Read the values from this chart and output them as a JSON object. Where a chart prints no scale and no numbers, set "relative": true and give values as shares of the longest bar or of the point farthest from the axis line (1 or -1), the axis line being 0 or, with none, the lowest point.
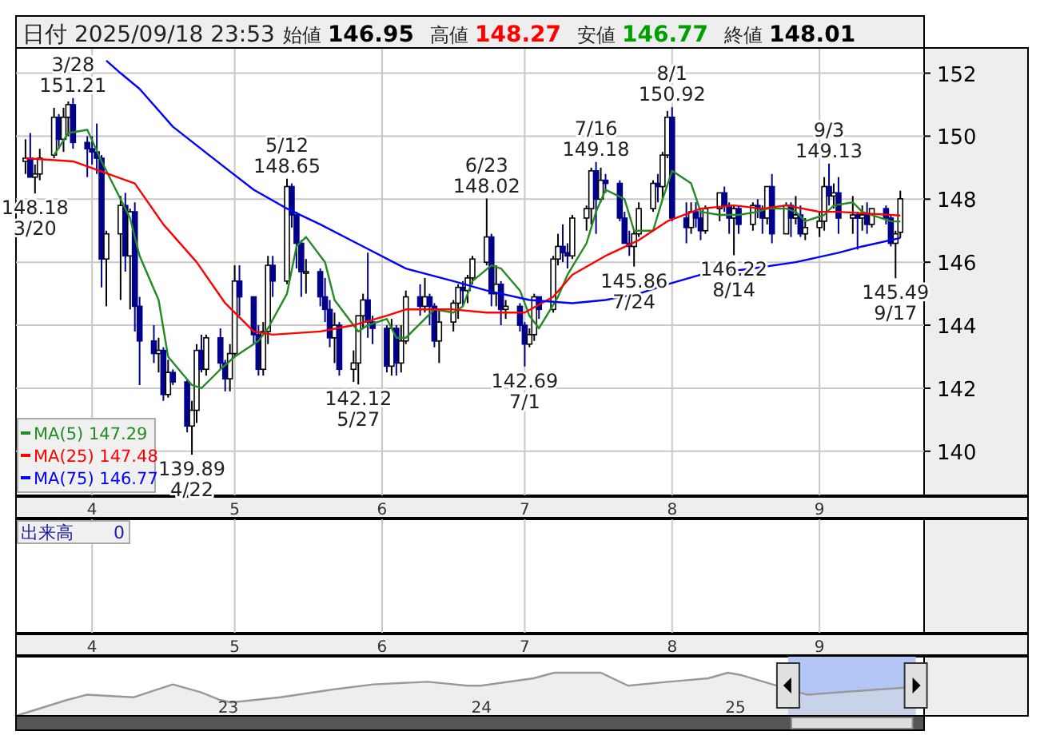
{
  "chart_data": [
    {
      "type": "candlestick",
      "title": "日付 2025/09/18 23:53",
      "annotations": [
        "始値",
        "146.95",
        "高値",
        "148.27",
        "安値",
        "146.77",
        "終値",
        "148.01",
        {
          "text": "3/28",
          "x": "2025-03-28",
          "y": 151.21
        },
        {
          "text": "151.21",
          "x": "2025-03-28",
          "y": 151.21
        },
        {
          "text": "148.18",
          "x": "2025-03-20",
          "y": 148.18
        },
        {
          "text": "3/20",
          "x": "2025-03-20",
          "y": 148.18
        },
        {
          "text": "139.89",
          "x": "2025-04-22",
          "y": 139.89
        },
        {
          "text": "4/22",
          "x": "2025-04-22",
          "y": 139.89
        },
        {
          "text": "5/12",
          "x": "2025-05-12",
          "y": 148.65
        },
        {
          "text": "148.65",
          "x": "2025-05-12",
          "y": 148.65
        },
        {
          "text": "142.12",
          "x": "2025-05-27",
          "y": 142.12
        },
        {
          "text": "5/27",
          "x": "2025-05-27",
          "y": 142.12
        },
        {
          "text": "6/23",
          "x": "2025-06-23",
          "y": 148.02
        },
        {
          "text": "148.02",
          "x": "2025-06-23",
          "y": 148.02
        },
        {
          "text": "142.69",
          "x": "2025-07-01",
          "y": 142.69
        },
        {
          "text": "7/1",
          "x": "2025-07-01",
          "y": 142.69
        },
        {
          "text": "7/16",
          "x": "2025-07-16",
          "y": 149.18
        },
        {
          "text": "149.18",
          "x": "2025-07-16",
          "y": 149.18
        },
        {
          "text": "145.86",
          "x": "2025-07-24",
          "y": 145.86
        },
        {
          "text": "7/24",
          "x": "2025-07-24",
          "y": 145.86
        },
        {
          "text": "8/1",
          "x": "2025-08-01",
          "y": 150.92
        },
        {
          "text": "150.92",
          "x": "2025-08-01",
          "y": 150.92
        },
        {
          "text": "146.22",
          "x": "2025-08-14",
          "y": 146.22
        },
        {
          "text": "8/14",
          "x": "2025-08-14",
          "y": 146.22
        },
        {
          "text": "9/3",
          "x": "2025-09-03",
          "y": 149.13
        },
        {
          "text": "149.13",
          "x": "2025-09-03",
          "y": 149.13
        },
        {
          "text": "145.49",
          "x": "2025-09-17",
          "y": 145.49
        },
        {
          "text": "9/17",
          "x": "2025-09-17",
          "y": 145.49
        }
      ],
      "x": [
        "2025-03-18",
        "2025-03-19",
        "2025-03-20",
        "2025-03-21",
        "2025-03-24",
        "2025-03-25",
        "2025-03-26",
        "2025-03-27",
        "2025-03-28",
        "2025-03-31",
        "2025-04-01",
        "2025-04-02",
        "2025-04-03",
        "2025-04-04",
        "2025-04-07",
        "2025-04-08",
        "2025-04-09",
        "2025-04-10",
        "2025-04-11",
        "2025-04-14",
        "2025-04-15",
        "2025-04-16",
        "2025-04-17",
        "2025-04-18",
        "2025-04-21",
        "2025-04-22",
        "2025-04-23",
        "2025-04-24",
        "2025-04-25",
        "2025-04-28",
        "2025-04-29",
        "2025-04-30",
        "2025-05-01",
        "2025-05-02",
        "2025-05-05",
        "2025-05-06",
        "2025-05-07",
        "2025-05-08",
        "2025-05-09",
        "2025-05-12",
        "2025-05-13",
        "2025-05-14",
        "2025-05-15",
        "2025-05-16",
        "2025-05-19",
        "2025-05-20",
        "2025-05-21",
        "2025-05-22",
        "2025-05-23",
        "2025-05-26",
        "2025-05-27",
        "2025-05-28",
        "2025-05-29",
        "2025-05-30",
        "2025-06-02",
        "2025-06-03",
        "2025-06-04",
        "2025-06-05",
        "2025-06-06",
        "2025-06-09",
        "2025-06-10",
        "2025-06-11",
        "2025-06-12",
        "2025-06-13",
        "2025-06-16",
        "2025-06-17",
        "2025-06-18",
        "2025-06-19",
        "2025-06-20",
        "2025-06-23",
        "2025-06-24",
        "2025-06-25",
        "2025-06-26",
        "2025-06-27",
        "2025-06-30",
        "2025-07-01",
        "2025-07-02",
        "2025-07-03",
        "2025-07-04",
        "2025-07-07",
        "2025-07-08",
        "2025-07-09",
        "2025-07-10",
        "2025-07-11",
        "2025-07-14",
        "2025-07-15",
        "2025-07-16",
        "2025-07-17",
        "2025-07-18",
        "2025-07-21",
        "2025-07-22",
        "2025-07-23",
        "2025-07-24",
        "2025-07-25",
        "2025-07-28",
        "2025-07-29",
        "2025-07-30",
        "2025-07-31",
        "2025-08-01",
        "2025-08-04",
        "2025-08-05",
        "2025-08-06",
        "2025-08-07",
        "2025-08-08",
        "2025-08-11",
        "2025-08-12",
        "2025-08-13",
        "2025-08-14",
        "2025-08-15",
        "2025-08-18",
        "2025-08-19",
        "2025-08-20",
        "2025-08-21",
        "2025-08-22",
        "2025-08-25",
        "2025-08-26",
        "2025-08-27",
        "2025-08-28",
        "2025-08-29",
        "2025-09-01",
        "2025-09-02",
        "2025-09-03",
        "2025-09-04",
        "2025-09-05",
        "2025-09-08",
        "2025-09-09",
        "2025-09-10",
        "2025-09-11",
        "2025-09-12",
        "2025-09-15",
        "2025-09-16",
        "2025-09-17",
        "2025-09-18"
      ],
      "ohlc": [
        [
          149.2,
          149.9,
          148.8,
          149.3
        ],
        [
          149.3,
          150.1,
          148.7,
          148.7
        ],
        [
          148.7,
          149.1,
          148.18,
          148.8
        ],
        [
          148.8,
          149.6,
          148.6,
          149.3
        ],
        [
          149.4,
          150.9,
          149.3,
          150.6
        ],
        [
          150.6,
          150.7,
          149.6,
          149.9
        ],
        [
          149.9,
          150.9,
          149.5,
          150.6
        ],
        [
          150.6,
          151.1,
          150.0,
          151.0
        ],
        [
          151.0,
          151.21,
          149.6,
          149.8
        ],
        [
          149.8,
          150.0,
          148.7,
          149.6
        ],
        [
          149.6,
          150.0,
          149.1,
          149.5
        ],
        [
          149.5,
          150.4,
          148.8,
          149.3
        ],
        [
          149.3,
          149.4,
          145.2,
          146.1
        ],
        [
          146.1,
          147.0,
          144.6,
          146.9
        ],
        [
          146.9,
          148.1,
          144.8,
          147.8
        ],
        [
          147.8,
          148.2,
          145.7,
          146.2
        ],
        [
          146.2,
          147.7,
          144.5,
          147.6
        ],
        [
          147.6,
          147.9,
          143.8,
          144.6
        ],
        [
          144.6,
          144.9,
          142.1,
          143.5
        ],
        [
          143.5,
          144.0,
          142.8,
          143.1
        ],
        [
          143.1,
          143.6,
          142.5,
          143.2
        ],
        [
          143.2,
          143.3,
          141.6,
          141.8
        ],
        [
          141.8,
          142.9,
          141.7,
          142.5
        ],
        [
          142.5,
          142.6,
          142.1,
          142.2
        ],
        [
          142.2,
          142.3,
          140.6,
          140.8
        ],
        [
          140.8,
          141.6,
          139.89,
          141.3
        ],
        [
          141.3,
          143.4,
          140.9,
          143.2
        ],
        [
          143.2,
          143.7,
          142.5,
          142.6
        ],
        [
          142.6,
          143.7,
          142.4,
          143.6
        ],
        [
          143.6,
          143.9,
          142.6,
          142.8
        ],
        [
          142.8,
          142.9,
          141.9,
          142.3
        ],
        [
          142.3,
          143.4,
          141.9,
          143.1
        ],
        [
          143.1,
          145.9,
          143.0,
          145.4
        ],
        [
          145.4,
          145.9,
          144.3,
          144.9
        ],
        [
          144.9,
          144.9,
          143.4,
          143.7
        ],
        [
          143.7,
          144.0,
          142.4,
          142.6
        ],
        [
          142.6,
          144.1,
          142.4,
          143.8
        ],
        [
          143.8,
          146.2,
          143.4,
          145.9
        ],
        [
          145.9,
          146.2,
          144.9,
          145.4
        ],
        [
          145.4,
          148.65,
          145.3,
          148.4
        ],
        [
          148.4,
          148.5,
          147.1,
          147.5
        ],
        [
          147.5,
          147.6,
          145.8,
          146.6
        ],
        [
          146.6,
          146.7,
          144.9,
          145.7
        ],
        [
          145.7,
          146.1,
          145.0,
          145.7
        ],
        [
          145.7,
          145.8,
          144.6,
          144.9
        ],
        [
          144.9,
          145.5,
          144.1,
          144.5
        ],
        [
          144.5,
          144.8,
          143.3,
          143.6
        ],
        [
          143.6,
          144.4,
          142.8,
          144.0
        ],
        [
          144.0,
          144.1,
          142.4,
          142.6
        ],
        [
          142.6,
          143.2,
          142.2,
          142.8
        ],
        [
          142.8,
          144.3,
          142.12,
          144.3
        ],
        [
          144.3,
          145.0,
          143.9,
          144.8
        ],
        [
          144.8,
          146.3,
          143.6,
          144.1
        ],
        [
          144.1,
          144.3,
          143.4,
          143.9
        ],
        [
          143.9,
          144.0,
          142.5,
          142.7
        ],
        [
          142.7,
          144.2,
          142.4,
          143.9
        ],
        [
          143.9,
          144.0,
          142.4,
          142.8
        ],
        [
          142.8,
          144.0,
          142.5,
          143.5
        ],
        [
          143.5,
          145.1,
          143.4,
          144.9
        ],
        [
          144.9,
          145.3,
          144.3,
          144.6
        ],
        [
          144.6,
          145.5,
          144.4,
          144.9
        ],
        [
          144.9,
          145.0,
          144.0,
          144.6
        ],
        [
          144.6,
          144.7,
          143.3,
          143.5
        ],
        [
          143.5,
          144.5,
          142.8,
          144.1
        ],
        [
          144.1,
          144.8,
          143.8,
          144.7
        ],
        [
          144.7,
          145.3,
          144.2,
          145.2
        ],
        [
          145.2,
          145.4,
          144.6,
          145.1
        ],
        [
          145.1,
          145.6,
          144.7,
          145.5
        ],
        [
          145.5,
          146.2,
          145.3,
          146.1
        ],
        [
          146.0,
          148.02,
          145.9,
          146.8
        ],
        [
          146.8,
          146.9,
          144.6,
          145.0
        ],
        [
          145.0,
          145.9,
          144.6,
          145.3
        ],
        [
          145.3,
          145.4,
          144.0,
          144.5
        ],
        [
          144.5,
          144.8,
          144.2,
          144.6
        ],
        [
          144.6,
          144.7,
          143.8,
          144.0
        ],
        [
          144.0,
          144.1,
          142.69,
          143.4
        ],
        [
          143.4,
          143.9,
          143.3,
          143.7
        ],
        [
          143.7,
          145.0,
          143.5,
          144.9
        ],
        [
          144.9,
          144.9,
          144.2,
          144.5
        ],
        [
          144.5,
          146.2,
          144.4,
          146.1
        ],
        [
          146.1,
          146.9,
          145.9,
          146.5
        ],
        [
          146.5,
          147.2,
          146.0,
          146.3
        ],
        [
          146.3,
          146.6,
          145.8,
          146.2
        ],
        [
          146.2,
          147.5,
          146.1,
          147.4
        ],
        [
          147.4,
          147.8,
          147.0,
          147.7
        ],
        [
          147.7,
          149.0,
          147.2,
          148.9
        ],
        [
          148.9,
          149.18,
          146.9,
          148.0
        ],
        [
          148.0,
          149.0,
          147.9,
          148.6
        ],
        [
          148.6,
          148.8,
          148.2,
          148.5
        ],
        [
          148.5,
          148.6,
          147.3,
          147.4
        ],
        [
          147.4,
          147.6,
          146.6,
          146.6
        ],
        [
          146.6,
          147.0,
          146.2,
          146.5
        ],
        [
          146.5,
          147.0,
          145.86,
          146.9
        ],
        [
          146.9,
          147.9,
          146.8,
          147.7
        ],
        [
          147.7,
          148.6,
          147.6,
          148.5
        ],
        [
          148.5,
          148.8,
          147.9,
          148.4
        ],
        [
          148.4,
          149.5,
          148.0,
          149.4
        ],
        [
          149.4,
          150.8,
          149.3,
          150.6
        ],
        [
          150.6,
          150.92,
          147.3,
          147.4
        ],
        [
          147.4,
          147.9,
          146.6,
          147.1
        ],
        [
          147.1,
          147.9,
          146.9,
          147.6
        ],
        [
          147.6,
          147.9,
          147.1,
          147.4
        ],
        [
          147.4,
          147.7,
          146.7,
          147.0
        ],
        [
          147.0,
          147.8,
          146.9,
          147.7
        ],
        [
          147.7,
          148.2,
          147.3,
          148.2
        ],
        [
          148.2,
          148.4,
          147.6,
          147.8
        ],
        [
          147.8,
          147.9,
          146.9,
          147.4
        ],
        [
          147.4,
          147.8,
          146.22,
          147.7
        ],
        [
          147.7,
          147.8,
          146.9,
          147.2
        ],
        [
          147.2,
          147.9,
          147.0,
          147.8
        ],
        [
          147.8,
          148.0,
          147.4,
          147.7
        ],
        [
          147.7,
          147.8,
          146.9,
          147.4
        ],
        [
          147.4,
          148.4,
          147.2,
          148.4
        ],
        [
          148.4,
          148.8,
          146.6,
          146.9
        ],
        [
          146.9,
          147.9,
          146.9,
          147.8
        ],
        [
          147.8,
          147.9,
          146.8,
          147.4
        ],
        [
          147.4,
          148.1,
          147.2,
          147.5
        ],
        [
          147.5,
          147.8,
          146.8,
          146.9
        ],
        [
          146.9,
          147.4,
          146.7,
          147.1
        ],
        [
          147.1,
          147.6,
          146.8,
          147.3
        ],
        [
          147.3,
          148.7,
          147.0,
          148.4
        ],
        [
          148.4,
          149.13,
          147.8,
          148.1
        ],
        [
          148.1,
          148.5,
          147.7,
          148.2
        ],
        [
          148.2,
          148.7,
          146.9,
          147.4
        ],
        [
          147.4,
          148.1,
          146.9,
          147.5
        ],
        [
          147.5,
          147.6,
          146.4,
          147.4
        ],
        [
          147.4,
          147.8,
          147.0,
          147.5
        ],
        [
          147.5,
          147.9,
          146.9,
          147.2
        ],
        [
          147.2,
          147.7,
          147.1,
          147.7
        ],
        [
          147.7,
          147.8,
          147.2,
          147.4
        ],
        [
          147.4,
          147.5,
          146.5,
          146.6
        ],
        [
          146.6,
          147.0,
          145.49,
          146.9
        ],
        [
          146.95,
          148.27,
          146.77,
          148.01
        ]
      ],
      "series": [
        {
          "name": "MA(5) 147.29",
          "type": "line",
          "color": "#228b22",
          "x": [
            "2025-03-24",
            "2025-03-27",
            "2025-03-31",
            "2025-04-03",
            "2025-04-07",
            "2025-04-09",
            "2025-04-11",
            "2025-04-15",
            "2025-04-17",
            "2025-04-22",
            "2025-04-24",
            "2025-04-28",
            "2025-05-01",
            "2025-05-06",
            "2025-05-08",
            "2025-05-12",
            "2025-05-14",
            "2025-05-16",
            "2025-05-20",
            "2025-05-22",
            "2025-05-27",
            "2025-05-29",
            "2025-06-02",
            "2025-06-04",
            "2025-06-06",
            "2025-06-10",
            "2025-06-12",
            "2025-06-16",
            "2025-06-18",
            "2025-06-20",
            "2025-06-24",
            "2025-06-26",
            "2025-06-30",
            "2025-07-02",
            "2025-07-04",
            "2025-07-08",
            "2025-07-10",
            "2025-07-14",
            "2025-07-16",
            "2025-07-18",
            "2025-07-22",
            "2025-07-24",
            "2025-07-28",
            "2025-07-30",
            "2025-08-01",
            "2025-08-05",
            "2025-08-07",
            "2025-08-11",
            "2025-08-13",
            "2025-08-15",
            "2025-08-19",
            "2025-08-21",
            "2025-08-25",
            "2025-08-27",
            "2025-08-29",
            "2025-09-02",
            "2025-09-04",
            "2025-09-08",
            "2025-09-10",
            "2025-09-12",
            "2025-09-16",
            "2025-09-18"
          ],
          "values": [
            149.4,
            150.1,
            150.2,
            149.2,
            148.0,
            147.4,
            146.2,
            144.8,
            143.0,
            142.1,
            142.0,
            142.6,
            143.0,
            143.5,
            143.9,
            145.0,
            146.5,
            146.8,
            146.0,
            144.8,
            143.8,
            144.0,
            144.2,
            143.6,
            143.6,
            144.2,
            144.5,
            144.4,
            144.6,
            145.4,
            145.9,
            145.8,
            145.1,
            144.3,
            143.9,
            144.9,
            145.6,
            146.6,
            147.6,
            148.3,
            148.0,
            147.0,
            147.0,
            148.0,
            148.9,
            148.5,
            147.6,
            147.5,
            147.5,
            147.5,
            147.6,
            147.7,
            147.7,
            147.6,
            147.3,
            147.5,
            147.8,
            147.9,
            147.6,
            147.5,
            147.3,
            147.29
          ]
        },
        {
          "name": "MA(25) 147.48",
          "type": "line",
          "color": "#ff0000",
          "x": [
            "2025-03-18",
            "2025-03-28",
            "2025-04-10",
            "2025-04-16",
            "2025-04-23",
            "2025-04-29",
            "2025-05-05",
            "2025-05-09",
            "2025-05-19",
            "2025-05-26",
            "2025-06-02",
            "2025-06-06",
            "2025-06-16",
            "2025-06-23",
            "2025-07-01",
            "2025-07-07",
            "2025-07-11",
            "2025-07-18",
            "2025-07-25",
            "2025-07-31",
            "2025-08-07",
            "2025-08-14",
            "2025-08-20",
            "2025-08-25",
            "2025-09-01",
            "2025-09-05",
            "2025-09-18"
          ],
          "values": [
            149.3,
            149.2,
            148.5,
            147.2,
            146.0,
            144.7,
            143.8,
            143.7,
            143.8,
            144.0,
            144.3,
            144.5,
            144.5,
            144.4,
            144.4,
            144.9,
            145.6,
            146.2,
            146.7,
            147.3,
            147.7,
            147.8,
            147.7,
            147.8,
            147.6,
            147.6,
            147.48
          ]
        },
        {
          "name": "MA(75) 146.77",
          "type": "line",
          "color": "#0000ff",
          "x": [
            "2025-04-04",
            "2025-04-07",
            "2025-04-11",
            "2025-04-18",
            "2025-04-29",
            "2025-05-05",
            "2025-05-12",
            "2025-05-19",
            "2025-05-28",
            "2025-06-06",
            "2025-06-16",
            "2025-06-23",
            "2025-07-02",
            "2025-07-11",
            "2025-07-18",
            "2025-07-25",
            "2025-07-31",
            "2025-08-07",
            "2025-08-18",
            "2025-08-27",
            "2025-09-05",
            "2025-09-10",
            "2025-09-18"
          ],
          "values": [
            152.4,
            152.0,
            151.5,
            150.3,
            149.0,
            148.3,
            147.7,
            147.2,
            146.5,
            145.8,
            145.4,
            145.1,
            144.8,
            144.7,
            144.8,
            145.0,
            145.3,
            145.6,
            145.8,
            146.0,
            146.3,
            146.5,
            146.77
          ]
        }
      ],
      "xlim": [
        "2025-03-16",
        "2025-09-23"
      ],
      "xticks": [
        {
          "value": "2025-04-01",
          "label": "4"
        },
        {
          "value": "2025-05-01",
          "label": "5"
        },
        {
          "value": "2025-06-01",
          "label": "6"
        },
        {
          "value": "2025-07-01",
          "label": "7"
        },
        {
          "value": "2025-08-01",
          "label": "8"
        },
        {
          "value": "2025-09-01",
          "label": "9"
        }
      ],
      "ylim": [
        138.6,
        152.8
      ],
      "yticks": [
        140,
        142,
        144,
        146,
        148,
        150,
        152
      ],
      "grid": true,
      "legend": "bottom left"
    },
    {
      "type": "other",
      "title": "出来高",
      "annotations": [
        "0"
      ]
    },
    {
      "type": "area",
      "relative": true,
      "color": "#999999",
      "x": [
        "2022-03-01",
        "2022-05-14",
        "2022-06-11",
        "2022-08-17",
        "2022-10-13",
        "2022-11-22",
        "2022-12-20",
        "2023-01-05",
        "2023-03-17",
        "2023-06-01",
        "2023-07-29",
        "2023-10-16",
        "2023-12-12",
        "2023-12-31",
        "2024-03-16",
        "2024-04-15",
        "2024-06-21",
        "2024-07-30",
        "2024-09-26",
        "2024-11-23",
        "2024-12-21",
        "2025-01-08",
        "2025-04-15",
        "2025-06-03",
        "2025-09-18"
      ],
      "values": [
        0,
        0.37,
        0.49,
        0.43,
        0.73,
        0.55,
        0.37,
        0.31,
        0.43,
        0.61,
        0.73,
        0.79,
        0.7,
        0.7,
        0.87,
        1,
        1,
        0.7,
        0.79,
        0.87,
        1,
        0.95,
        0.49,
        0.55,
        0.67
      ],
      "xlim": [
        "2022-03-01",
        "2025-09-30"
      ],
      "xticks": [
        {
          "value": "2023-01-01",
          "label": "23"
        },
        {
          "value": "2024-01-01",
          "label": "24"
        },
        {
          "value": "2025-01-01",
          "label": "25"
        }
      ],
      "bands": [
        {
          "axis": "x",
          "from": "2025-03-18",
          "to": "2025-09-18",
          "color": "#b3c6f5"
        }
      ]
    }
  ]
}
